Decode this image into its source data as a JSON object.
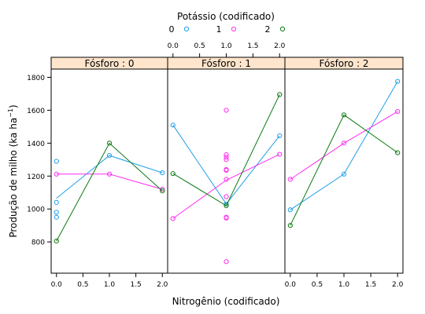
{
  "chart_data": {
    "type": "line",
    "legend": {
      "title": "Potássio (codificado)",
      "placement": "top",
      "entries": [
        {
          "label": "0",
          "color": "#1f9fe8"
        },
        {
          "label": "1",
          "color": "#ff2cf0"
        },
        {
          "label": "2",
          "color": "#0c7a12"
        }
      ]
    },
    "ylabel": "Produção de milho (ka ha",
    "ylabel_superscript": "−1",
    "ylabel_close": ")",
    "xlabel": "Nitrogênio (codificado)",
    "ylim": [
      610,
      1850
    ],
    "yticks": [
      "800",
      "1000",
      "1200",
      "1400",
      "1600",
      "1800"
    ],
    "ytick_values": [
      800,
      1000,
      1200,
      1400,
      1600,
      1800
    ],
    "grid": false,
    "panels": [
      {
        "strip": "Fósforo : 0",
        "xlim": [
          -0.1,
          2.1
        ],
        "xticks": [
          "0.0",
          "0.5",
          "1.0",
          "1.5",
          "2.0"
        ],
        "xtick_values": [
          0,
          0.5,
          1,
          1.5,
          2
        ],
        "xtick_position": "bottom",
        "series": [
          {
            "name": "0",
            "points": [
              [
                0,
                1290
              ],
              [
                0,
                1040
              ],
              [
                0,
                980
              ],
              [
                0,
                950
              ],
              [
                1,
                1325
              ],
              [
                2,
                1220
              ]
            ],
            "line": [
              [
                0,
                1065
              ],
              [
                1,
                1325
              ],
              [
                2,
                1220
              ]
            ]
          },
          {
            "name": "1",
            "points": [
              [
                0,
                1212
              ],
              [
                1,
                1212
              ],
              [
                2,
                1120
              ]
            ],
            "line": [
              [
                0,
                1212
              ],
              [
                1,
                1212
              ],
              [
                2,
                1120
              ]
            ]
          },
          {
            "name": "2",
            "points": [
              [
                0,
                805
              ],
              [
                1,
                1400
              ],
              [
                2,
                1110
              ]
            ],
            "line": [
              [
                0,
                805
              ],
              [
                1,
                1400
              ],
              [
                2,
                1110
              ]
            ]
          }
        ]
      },
      {
        "strip": "Fósforo : 1",
        "xlim": [
          -0.1,
          2.1
        ],
        "xticks": [
          "0.0",
          "0.5",
          "1.0",
          "1.5",
          "2.0"
        ],
        "xtick_values": [
          0,
          0.5,
          1,
          1.5,
          2
        ],
        "xtick_position": "top",
        "series": [
          {
            "name": "0",
            "points": [
              [
                0,
                1510
              ],
              [
                1,
                1030
              ],
              [
                2,
                1445
              ]
            ],
            "line": [
              [
                0,
                1510
              ],
              [
                1,
                1030
              ],
              [
                2,
                1445
              ]
            ]
          },
          {
            "name": "1",
            "points": [
              [
                0,
                942
              ],
              [
                1,
                1600
              ],
              [
                1,
                1330
              ],
              [
                1,
                1315
              ],
              [
                1,
                1300
              ],
              [
                1,
                1240
              ],
              [
                1,
                1235
              ],
              [
                1,
                1180
              ],
              [
                1,
                1075
              ],
              [
                1,
                950
              ],
              [
                1,
                945
              ],
              [
                1,
                680
              ],
              [
                2,
                1332
              ]
            ],
            "line": [
              [
                0,
                942
              ],
              [
                1,
                1175
              ],
              [
                2,
                1332
              ]
            ]
          },
          {
            "name": "2",
            "points": [
              [
                0,
                1215
              ],
              [
                1,
                1020
              ],
              [
                2,
                1695
              ]
            ],
            "line": [
              [
                0,
                1215
              ],
              [
                1,
                1020
              ],
              [
                2,
                1695
              ]
            ]
          }
        ]
      },
      {
        "strip": "Fósforo : 2",
        "xlim": [
          -0.1,
          2.1
        ],
        "xticks": [
          "0.0",
          "0.5",
          "1.0",
          "1.5",
          "2.0"
        ],
        "xtick_values": [
          0,
          0.5,
          1,
          1.5,
          2
        ],
        "xtick_position": "bottom",
        "series": [
          {
            "name": "0",
            "points": [
              [
                0,
                995
              ],
              [
                1,
                1212
              ],
              [
                2,
                1775
              ]
            ],
            "line": [
              [
                0,
                995
              ],
              [
                1,
                1212
              ],
              [
                2,
                1775
              ]
            ]
          },
          {
            "name": "1",
            "points": [
              [
                0,
                1180
              ],
              [
                1,
                1400
              ],
              [
                2,
                1592
              ]
            ],
            "line": [
              [
                0,
                1180
              ],
              [
                1,
                1400
              ],
              [
                2,
                1592
              ]
            ]
          },
          {
            "name": "2",
            "points": [
              [
                0,
                900
              ],
              [
                1,
                1572
              ],
              [
                2,
                1342
              ]
            ],
            "line": [
              [
                0,
                900
              ],
              [
                1,
                1572
              ],
              [
                2,
                1342
              ]
            ]
          }
        ]
      }
    ]
  }
}
